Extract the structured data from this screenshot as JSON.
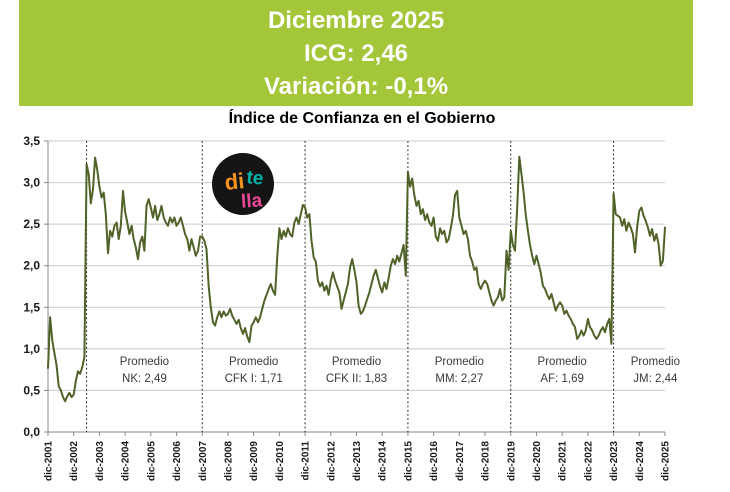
{
  "header": {
    "month_label": "Diciembre 2025",
    "icg_label": "ICG: 2,46",
    "variation_label": "Variación: -0,1%"
  },
  "colors": {
    "banner_green": "#a4c639",
    "line_green": "#4f6228",
    "gridline_gray": "#c9c9c9",
    "axis_gray": "#8a8a8a",
    "tick_label_color": "#1a1a1a",
    "avg_label_color": "#3a3a3a",
    "separator_black": "#1f1f1f",
    "logo_black": "#141414",
    "logo_orange": "#f7941d",
    "logo_teal": "#00b2a9",
    "logo_pink": "#ec4899"
  },
  "logo": {
    "part1": "di",
    "part2": "te",
    "part3": "lla"
  },
  "chart_data": {
    "type": "line",
    "title": "Índice de Confianza en el Gobierno",
    "xlabel": "",
    "ylabel": "",
    "ylim": [
      0,
      3.5
    ],
    "grid": "horizontal",
    "legend": "none",
    "y_tick_labels": [
      "0,0",
      "0,5",
      "1,0",
      "1,5",
      "2,0",
      "2,5",
      "3,0",
      "3,5"
    ],
    "x_tick_labels": [
      "dic-2001",
      "dic-2002",
      "dic-2003",
      "dic-2004",
      "dic-2005",
      "dic-2006",
      "dic-2007",
      "dic-2008",
      "dic-2009",
      "dic-2010",
      "dic-2011",
      "dic-2012",
      "dic-2013",
      "dic-2014",
      "dic-2015",
      "dic-2016",
      "dic-2017",
      "dic-2018",
      "dic-2019",
      "dic-2020",
      "dic-2021",
      "dic-2022",
      "dic-2023",
      "dic-2024",
      "dic-2025"
    ],
    "x_unit": "monthly from dic-2001 to dic-2025",
    "series_name": "ICG",
    "monthly_values": [
      0.77,
      1.38,
      1.1,
      0.95,
      0.8,
      0.55,
      0.5,
      0.42,
      0.37,
      0.43,
      0.47,
      0.42,
      0.45,
      0.62,
      0.73,
      0.7,
      0.78,
      0.9,
      3.22,
      3.1,
      2.75,
      2.92,
      3.3,
      3.15,
      2.95,
      2.82,
      2.88,
      2.62,
      2.15,
      2.42,
      2.35,
      2.48,
      2.52,
      2.32,
      2.48,
      2.9,
      2.65,
      2.52,
      2.38,
      2.48,
      2.32,
      2.22,
      2.08,
      2.28,
      2.35,
      2.18,
      2.72,
      2.8,
      2.7,
      2.58,
      2.72,
      2.55,
      2.62,
      2.72,
      2.58,
      2.52,
      2.48,
      2.58,
      2.52,
      2.58,
      2.48,
      2.52,
      2.58,
      2.48,
      2.38,
      2.32,
      2.18,
      2.32,
      2.22,
      2.12,
      2.18,
      2.35,
      2.35,
      2.3,
      2.2,
      1.75,
      1.5,
      1.32,
      1.28,
      1.38,
      1.45,
      1.38,
      1.45,
      1.4,
      1.42,
      1.48,
      1.4,
      1.35,
      1.3,
      1.35,
      1.25,
      1.18,
      1.25,
      1.15,
      1.08,
      1.28,
      1.32,
      1.38,
      1.32,
      1.38,
      1.48,
      1.58,
      1.65,
      1.72,
      1.78,
      1.7,
      1.65,
      2.1,
      2.45,
      2.32,
      2.42,
      2.35,
      2.45,
      2.38,
      2.35,
      2.52,
      2.58,
      2.5,
      2.62,
      2.73,
      2.7,
      2.58,
      2.62,
      2.3,
      2.1,
      2.05,
      1.82,
      1.75,
      1.8,
      1.7,
      1.76,
      1.65,
      1.82,
      1.92,
      1.82,
      1.75,
      1.68,
      1.48,
      1.58,
      1.68,
      1.78,
      1.98,
      2.08,
      1.95,
      1.8,
      1.52,
      1.42,
      1.45,
      1.52,
      1.6,
      1.68,
      1.78,
      1.88,
      1.95,
      1.85,
      1.75,
      1.68,
      1.8,
      1.72,
      1.85,
      2.0,
      2.08,
      2.02,
      2.12,
      2.05,
      2.15,
      2.25,
      1.88,
      3.13,
      2.95,
      3.05,
      2.85,
      2.72,
      2.78,
      2.62,
      2.68,
      2.55,
      2.62,
      2.52,
      2.48,
      2.58,
      2.35,
      2.3,
      2.45,
      2.38,
      2.42,
      2.28,
      2.32,
      2.45,
      2.6,
      2.85,
      2.9,
      2.58,
      2.48,
      2.38,
      2.42,
      2.32,
      2.12,
      2.05,
      1.95,
      1.98,
      1.78,
      1.72,
      1.78,
      1.82,
      1.78,
      1.68,
      1.58,
      1.52,
      1.58,
      1.62,
      1.72,
      1.58,
      1.62,
      2.18,
      1.95,
      2.42,
      2.25,
      2.18,
      2.7,
      3.31,
      3.1,
      2.88,
      2.62,
      2.42,
      2.25,
      2.12,
      2.02,
      2.12,
      2.02,
      1.92,
      1.76,
      1.72,
      1.65,
      1.6,
      1.66,
      1.56,
      1.46,
      1.52,
      1.56,
      1.52,
      1.42,
      1.46,
      1.4,
      1.36,
      1.3,
      1.26,
      1.12,
      1.16,
      1.22,
      1.16,
      1.22,
      1.36,
      1.26,
      1.22,
      1.16,
      1.12,
      1.16,
      1.22,
      1.26,
      1.2,
      1.3,
      1.36,
      1.06,
      2.87,
      2.62,
      2.6,
      2.58,
      2.48,
      2.56,
      2.42,
      2.52,
      2.46,
      2.38,
      2.16,
      2.46,
      2.66,
      2.7,
      2.6,
      2.54,
      2.46,
      2.36,
      2.44,
      2.3,
      2.38,
      2.26,
      2.0,
      2.06,
      2.46
    ],
    "period_separators_month_index": [
      18,
      72,
      120,
      168,
      216,
      264
    ],
    "period_averages": [
      {
        "line1": "Promedio",
        "line2": "NK: 2,49",
        "value": 2.49,
        "center_month": 45
      },
      {
        "line1": "Promedio",
        "line2": "CFK I: 1,71",
        "value": 1.71,
        "center_month": 96
      },
      {
        "line1": "Promedio",
        "line2": "CFK II: 1,83",
        "value": 1.83,
        "center_month": 144
      },
      {
        "line1": "Promedio",
        "line2": "MM: 2,27",
        "value": 2.27,
        "center_month": 192
      },
      {
        "line1": "Promedio",
        "line2": "AF: 1,69",
        "value": 1.69,
        "center_month": 240
      },
      {
        "line1": "Promedio",
        "line2": "JM: 2,44",
        "value": 2.44,
        "center_month": 283.5
      }
    ]
  }
}
